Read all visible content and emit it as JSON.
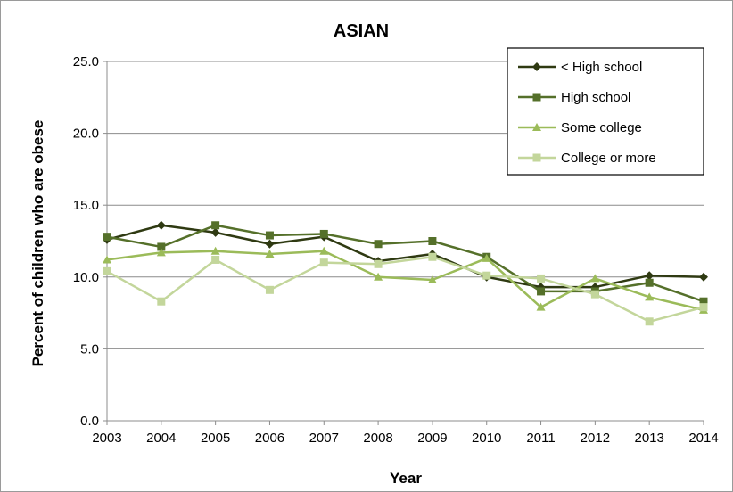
{
  "chart_data": {
    "type": "line",
    "title": "ASIAN",
    "xlabel": "Year",
    "ylabel": "Percent of children who are obese",
    "categories": [
      "2003",
      "2004",
      "2005",
      "2006",
      "2007",
      "2008",
      "2009",
      "2010",
      "2011",
      "2012",
      "2013",
      "2014"
    ],
    "ylim": [
      0,
      25
    ],
    "yticks": [
      "0.0",
      "5.0",
      "10.0",
      "15.0",
      "20.0",
      "25.0"
    ],
    "grid": "horizontal",
    "legend_position": "top-right",
    "series": [
      {
        "name": "< High school",
        "color": "#2f3a12",
        "marker": "diamond",
        "values": [
          12.6,
          13.6,
          13.1,
          12.3,
          12.8,
          11.1,
          11.6,
          10.0,
          9.3,
          9.3,
          10.1,
          10.0
        ]
      },
      {
        "name": "High school",
        "color": "#55702a",
        "marker": "square",
        "values": [
          12.8,
          12.1,
          13.6,
          12.9,
          13.0,
          12.3,
          12.5,
          11.4,
          9.0,
          9.0,
          9.6,
          8.3
        ]
      },
      {
        "name": "Some college",
        "color": "#9bbb59",
        "marker": "triangle",
        "values": [
          11.2,
          11.7,
          11.8,
          11.6,
          11.8,
          10.0,
          9.8,
          11.3,
          7.9,
          9.9,
          8.6,
          7.7
        ]
      },
      {
        "name": "College or more",
        "color": "#c3d69b",
        "marker": "square",
        "values": [
          10.4,
          8.3,
          11.2,
          9.1,
          11.0,
          10.9,
          11.4,
          10.1,
          9.9,
          8.8,
          6.9,
          7.9
        ]
      }
    ]
  }
}
